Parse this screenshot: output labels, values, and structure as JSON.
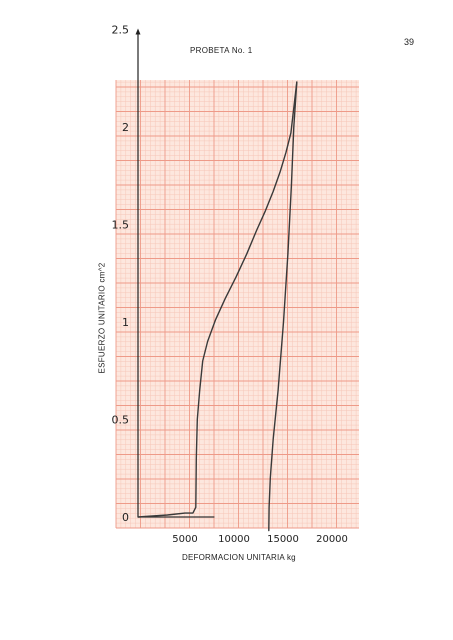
{
  "page": {
    "number": "39"
  },
  "chart_data": {
    "type": "line",
    "title": "PROBETA No. 1",
    "xlabel": "DEFORMACION UNITARIA kg",
    "ylabel": "ESFUERZO UNITARIO  cm^2",
    "xlim": [
      0,
      20000
    ],
    "ylim": [
      0,
      2.5
    ],
    "x_ticks": [
      "5000",
      "10000",
      "15000",
      "20000"
    ],
    "x_tick_values": [
      5000,
      10000,
      15000,
      20000
    ],
    "y_ticks": [
      "0",
      "0.5",
      "1",
      "1.5",
      "2",
      "2.5"
    ],
    "y_tick_values": [
      0,
      0.5,
      1,
      1.5,
      2,
      2.5
    ],
    "grid": true,
    "colors": {
      "grid_major": "#ee9a88",
      "grid_minor": "#f6c6b8",
      "paper": "#fde7de",
      "curve": "#3a3a3a"
    },
    "series": [
      {
        "x": [
          0,
          3000,
          4800,
          5600,
          5900,
          5950,
          6050,
          6300,
          6600,
          7100,
          7900,
          8900,
          10000,
          11100,
          12100,
          13000,
          13800,
          14500,
          15100,
          15600,
          16200
        ],
        "y": [
          0,
          0.01,
          0.02,
          0.02,
          0.05,
          0.3,
          0.5,
          0.65,
          0.8,
          0.9,
          1.01,
          1.12,
          1.23,
          1.35,
          1.47,
          1.57,
          1.67,
          1.77,
          1.87,
          1.97,
          2.23
        ]
      },
      {
        "x": [
          16200,
          15900,
          15650,
          15300,
          14850,
          14300,
          13800,
          13500,
          13380,
          13350
        ],
        "y": [
          2.23,
          2.0,
          1.7,
          1.35,
          1.0,
          0.65,
          0.4,
          0.2,
          0.05,
          -0.07
        ]
      }
    ]
  }
}
